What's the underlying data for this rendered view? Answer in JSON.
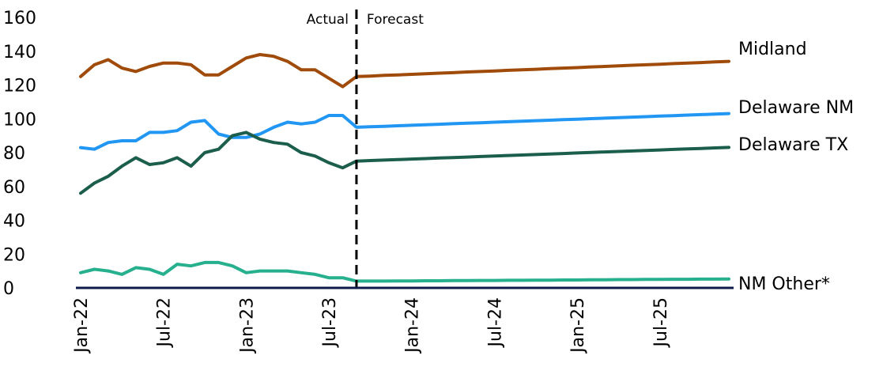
{
  "chart_data": {
    "type": "line",
    "title": "",
    "xlabel": "",
    "ylabel": "",
    "ylim": [
      0,
      160
    ],
    "yticks": [
      "0",
      "20",
      "40",
      "60",
      "80",
      "100",
      "120",
      "140",
      "160"
    ],
    "x_start": "Jan-22",
    "x_end": "Dec-25",
    "xticks": [
      "Jan-22",
      "Jul-22",
      "Jan-23",
      "Jul-23",
      "Jan-24",
      "Jul-24",
      "Jan-25",
      "Jul-25"
    ],
    "divider_at": "Sep-23",
    "annotations": {
      "left": "Actual",
      "right": "Forecast"
    },
    "grid": false,
    "legend": "direct labels at line ends",
    "series": [
      {
        "name": "Midland",
        "color": "#A04B0A",
        "values": [
          125,
          132,
          135,
          130,
          128,
          131,
          133,
          133,
          132,
          126,
          126,
          131,
          136,
          138,
          137,
          134,
          129,
          129,
          124,
          119,
          125,
          125.3,
          125.7,
          126.0,
          126.3,
          126.7,
          127.0,
          127.3,
          127.7,
          128.0,
          128.3,
          128.7,
          129.0,
          129.3,
          129.7,
          130.0,
          130.3,
          130.7,
          131.0,
          131.3,
          131.7,
          132.0,
          132.3,
          132.7,
          133.0,
          133.3,
          133.7,
          134.0
        ]
      },
      {
        "name": "Delaware NM",
        "color": "#2196F3",
        "values": [
          83,
          82,
          86,
          87,
          87,
          92,
          92,
          93,
          98,
          99,
          91,
          89,
          89,
          91,
          95,
          98,
          97,
          98,
          102,
          102,
          95,
          95.3,
          95.6,
          95.9,
          96.2,
          96.5,
          96.8,
          97.1,
          97.4,
          97.7,
          98.0,
          98.3,
          98.6,
          98.9,
          99.2,
          99.5,
          99.8,
          100.1,
          100.4,
          100.7,
          101.0,
          101.3,
          101.6,
          101.9,
          102.2,
          102.5,
          102.8,
          103.1
        ]
      },
      {
        "name": "Delaware TX",
        "color": "#1B5E4B",
        "values": [
          56,
          62,
          66,
          72,
          77,
          73,
          74,
          77,
          72,
          80,
          82,
          90,
          92,
          88,
          86,
          85,
          80,
          78,
          74,
          71,
          75,
          75.3,
          75.6,
          75.9,
          76.2,
          76.5,
          76.8,
          77.1,
          77.4,
          77.7,
          78.0,
          78.3,
          78.6,
          78.9,
          79.2,
          79.5,
          79.8,
          80.1,
          80.4,
          80.7,
          81.0,
          81.3,
          81.6,
          81.9,
          82.2,
          82.5,
          82.8,
          83.1
        ]
      },
      {
        "name": "NM Other*",
        "color": "#26B08E",
        "values": [
          9,
          11,
          10,
          8,
          12,
          11,
          8,
          14,
          13,
          15,
          15,
          13,
          9,
          10,
          10,
          10,
          9,
          8,
          6,
          6,
          4,
          4,
          4,
          4.1,
          4.1,
          4.2,
          4.2,
          4.3,
          4.3,
          4.4,
          4.4,
          4.5,
          4.5,
          4.6,
          4.6,
          4.7,
          4.7,
          4.8,
          4.8,
          4.9,
          4.9,
          5.0,
          5.0,
          5.1,
          5.1,
          5.2,
          5.2,
          5.3
        ]
      }
    ]
  },
  "colors": {
    "axis": "#0D1B4A",
    "divider": "#000000"
  }
}
